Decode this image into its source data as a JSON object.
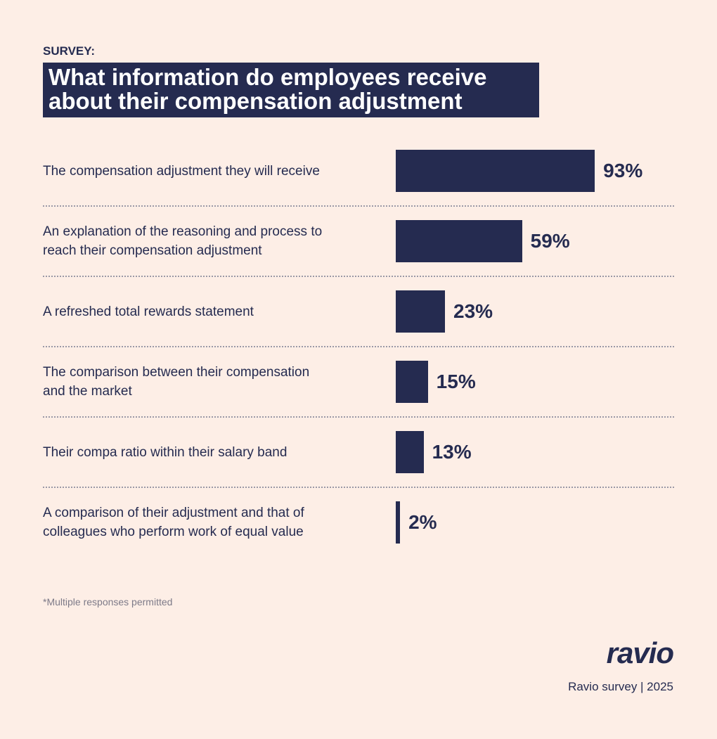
{
  "header": {
    "kicker": "SURVEY:",
    "title": "What information do employees receive about their compensation adjustment"
  },
  "chart_data": {
    "type": "bar",
    "orientation": "horizontal",
    "color": "#252b50",
    "categories": [
      "The compensation adjustment they will receive",
      "An explanation of the reasoning and process to reach their compensation adjustment",
      "A refreshed total rewards statement",
      "The comparison between their compensation and the market",
      "Their compa ratio within their salary band",
      "A comparison of their adjustment and that of colleagues who perform work of equal value"
    ],
    "values": [
      93,
      59,
      23,
      15,
      13,
      2
    ],
    "value_labels": [
      "93%",
      "59%",
      "23%",
      "15%",
      "13%",
      "2%"
    ]
  },
  "footnote": "*Multiple responses permitted",
  "brand": {
    "logo": "ravio",
    "source": "Ravio survey | 2025"
  }
}
